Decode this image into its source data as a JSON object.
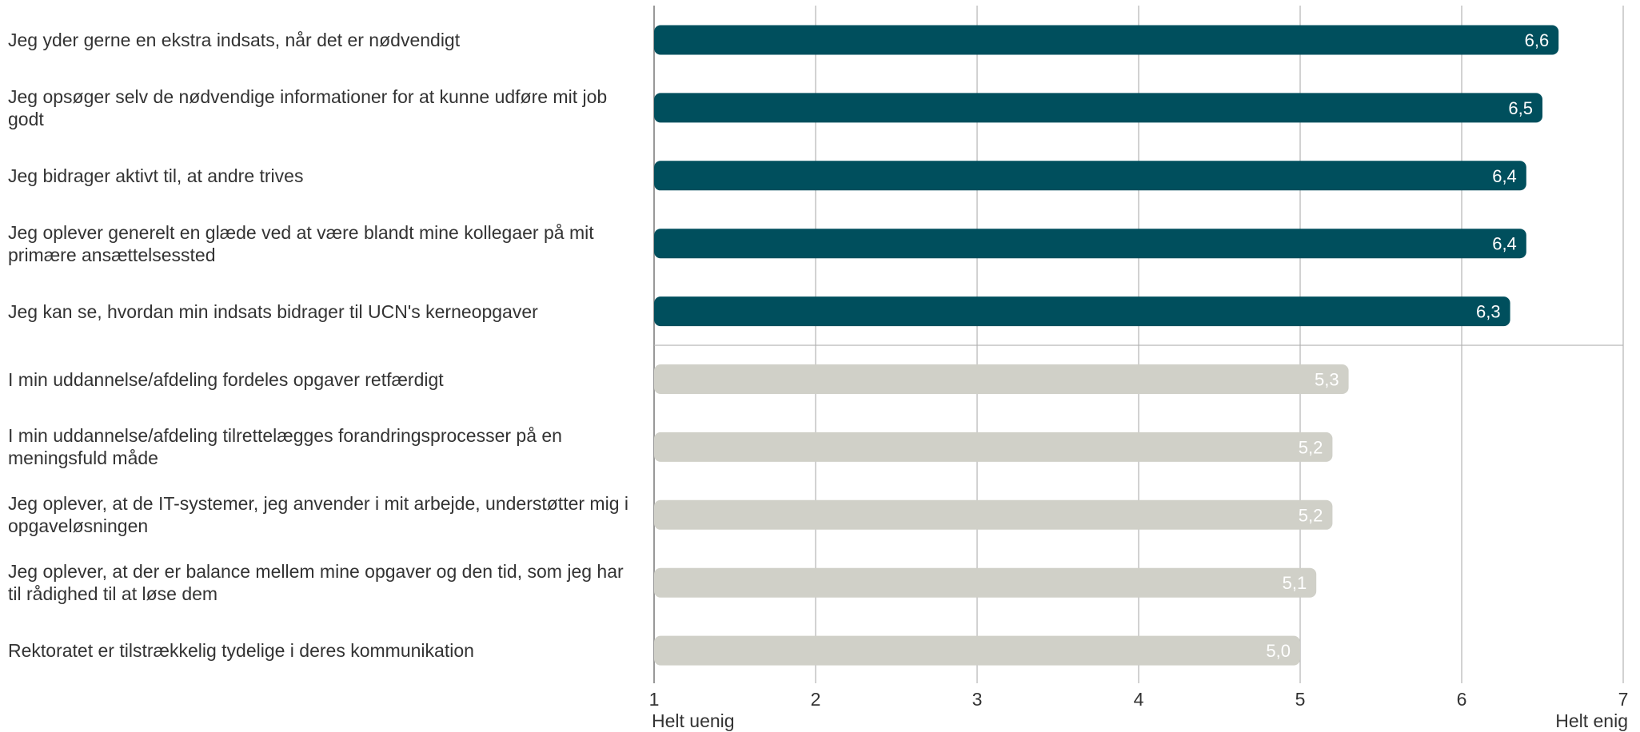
{
  "chart_data": {
    "type": "bar",
    "orientation": "horizontal",
    "categories": [
      "Jeg yder gerne en ekstra indsats, når det er nødvendigt",
      "Jeg opsøger selv de nødvendige informationer for at kunne udføre mit job godt",
      "Jeg bidrager aktivt til, at andre trives",
      "Jeg oplever generelt en glæde ved at være blandt mine kollegaer på mit primære ansættelsessted",
      "Jeg kan se, hvordan min indsats bidrager til UCN's kerneopgaver",
      "I min uddannelse/afdeling fordeles opgaver retfærdigt",
      "I min uddannelse/afdeling tilrettelægges forandringsprocesser på en meningsfuld måde",
      "Jeg oplever, at de IT-systemer, jeg anvender i mit arbejde, understøtter mig i opgaveløsningen",
      "Jeg oplever, at der er balance mellem mine opgaver og den tid, som jeg har til rådighed til at løse dem",
      "Rektoratet er tilstrækkelig tydelige i deres kommunikation"
    ],
    "values": [
      6.6,
      6.5,
      6.4,
      6.4,
      6.3,
      5.3,
      5.2,
      5.2,
      5.1,
      5.0
    ],
    "value_labels": [
      "6,6",
      "6,5",
      "6,4",
      "6,4",
      "6,3",
      "5,3",
      "5,2",
      "5,2",
      "5,1",
      "5,0"
    ],
    "groups": [
      "top",
      "top",
      "top",
      "top",
      "top",
      "bottom",
      "bottom",
      "bottom",
      "bottom",
      "bottom"
    ],
    "colors": {
      "top": "#004f5d",
      "bottom": "#d0d0c8",
      "grid": "#b3b3b3",
      "axis": "#999999",
      "label_on_bar": "#ffffff"
    },
    "xlim": [
      1,
      7
    ],
    "xticks": [
      "1",
      "2",
      "3",
      "4",
      "5",
      "6",
      "7"
    ],
    "x_anchor_left": "Helt uenig",
    "x_anchor_right": "Helt enig",
    "grid": true,
    "title": "",
    "xlabel": "",
    "ylabel": ""
  }
}
